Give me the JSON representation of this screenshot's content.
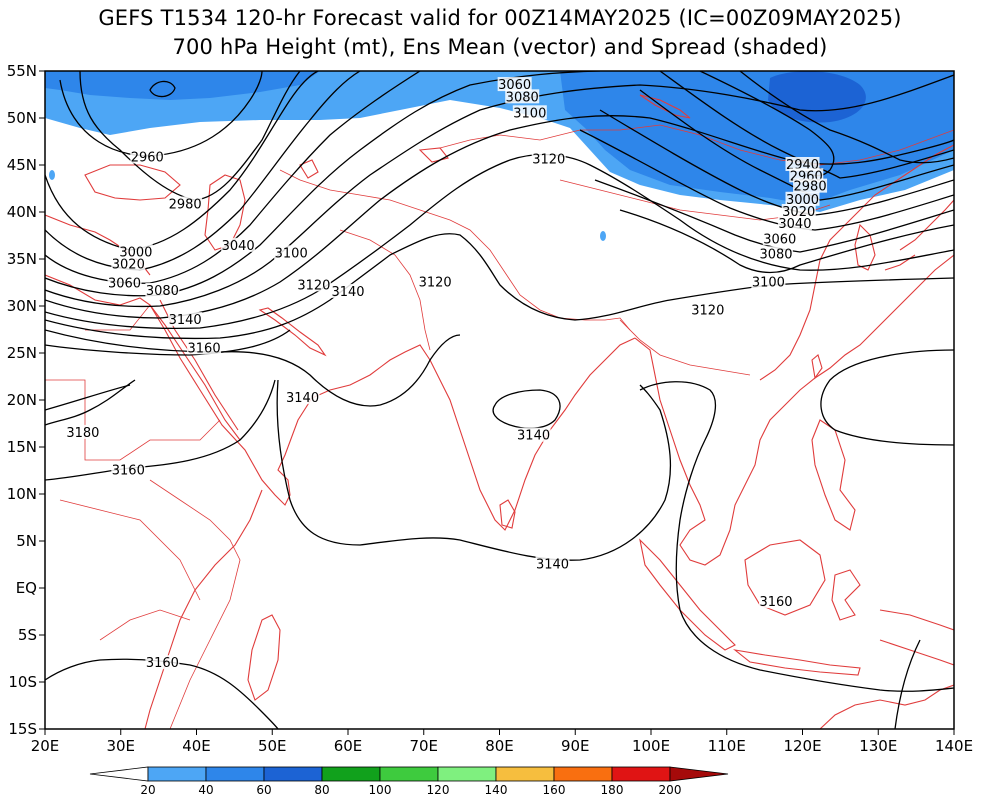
{
  "title": {
    "line1": "GEFS T1534 120-hr Forecast valid for 00Z14MAY2025 (IC=00Z09MAY2025)",
    "line2": "700 hPa Height (mt), Ens Mean (vector) and Spread (shaded)"
  },
  "map": {
    "lon_range": [
      20,
      140
    ],
    "lat_range": [
      -15,
      55
    ],
    "coastline_color": "#e03c3c",
    "contour_color": "#000000",
    "x_ticks": [
      "20E",
      "30E",
      "40E",
      "50E",
      "60E",
      "70E",
      "80E",
      "90E",
      "100E",
      "110E",
      "120E",
      "130E",
      "140E"
    ],
    "y_ticks": [
      "55N",
      "50N",
      "45N",
      "40N",
      "35N",
      "30N",
      "25N",
      "20N",
      "15N",
      "10N",
      "5N",
      "EQ",
      "5S",
      "10S",
      "15S"
    ],
    "contour_labels": [
      {
        "text": "3060",
        "lon": 82.0,
        "lat": 53.5
      },
      {
        "text": "3080",
        "lon": 83.0,
        "lat": 52.2
      },
      {
        "text": "3100",
        "lon": 84.0,
        "lat": 50.5
      },
      {
        "text": "2960",
        "lon": 33.5,
        "lat": 45.8
      },
      {
        "text": "2980",
        "lon": 38.5,
        "lat": 40.8
      },
      {
        "text": "3120",
        "lon": 86.5,
        "lat": 45.6
      },
      {
        "text": "3040",
        "lon": 45.5,
        "lat": 36.4
      },
      {
        "text": "3100",
        "lon": 52.5,
        "lat": 35.6
      },
      {
        "text": "3000",
        "lon": 32.0,
        "lat": 35.7
      },
      {
        "text": "3020",
        "lon": 31.0,
        "lat": 34.4
      },
      {
        "text": "3060",
        "lon": 30.5,
        "lat": 32.4
      },
      {
        "text": "3080",
        "lon": 35.5,
        "lat": 31.6
      },
      {
        "text": "3120",
        "lon": 55.5,
        "lat": 32.2
      },
      {
        "text": "3140",
        "lon": 60.0,
        "lat": 31.5
      },
      {
        "text": "3120",
        "lon": 71.5,
        "lat": 32.5
      },
      {
        "text": "3140",
        "lon": 38.5,
        "lat": 28.5
      },
      {
        "text": "3160",
        "lon": 41.0,
        "lat": 25.5
      },
      {
        "text": "3140",
        "lon": 54.0,
        "lat": 20.2
      },
      {
        "text": "3180",
        "lon": 25.0,
        "lat": 16.5
      },
      {
        "text": "3160",
        "lon": 31.0,
        "lat": 12.5
      },
      {
        "text": "3140",
        "lon": 84.5,
        "lat": 16.2
      },
      {
        "text": "3140",
        "lon": 87.0,
        "lat": 2.5
      },
      {
        "text": "3160",
        "lon": 116.5,
        "lat": -1.5
      },
      {
        "text": "3160",
        "lon": 35.5,
        "lat": -8.0
      },
      {
        "text": "2940",
        "lon": 120.0,
        "lat": 45.0
      },
      {
        "text": "2960",
        "lon": 120.5,
        "lat": 43.8
      },
      {
        "text": "2980",
        "lon": 121.0,
        "lat": 42.7
      },
      {
        "text": "3000",
        "lon": 120.0,
        "lat": 41.3
      },
      {
        "text": "3020",
        "lon": 119.5,
        "lat": 40.0
      },
      {
        "text": "3040",
        "lon": 119.0,
        "lat": 38.7
      },
      {
        "text": "3060",
        "lon": 117.0,
        "lat": 37.1
      },
      {
        "text": "3080",
        "lon": 116.5,
        "lat": 35.5
      },
      {
        "text": "3100",
        "lon": 115.5,
        "lat": 32.5
      },
      {
        "text": "3120",
        "lon": 107.5,
        "lat": 29.5
      }
    ]
  },
  "colorbar": {
    "labels": [
      "20",
      "40",
      "60",
      "80",
      "100",
      "120",
      "140",
      "160",
      "180",
      "200"
    ],
    "colors": [
      "#ffffff",
      "#4da6f5",
      "#2e86ea",
      "#1c63d4",
      "#11a11c",
      "#3ecb3e",
      "#7ff07f",
      "#f6be3e",
      "#f96f10",
      "#e01414",
      "#a50a0a"
    ]
  }
}
